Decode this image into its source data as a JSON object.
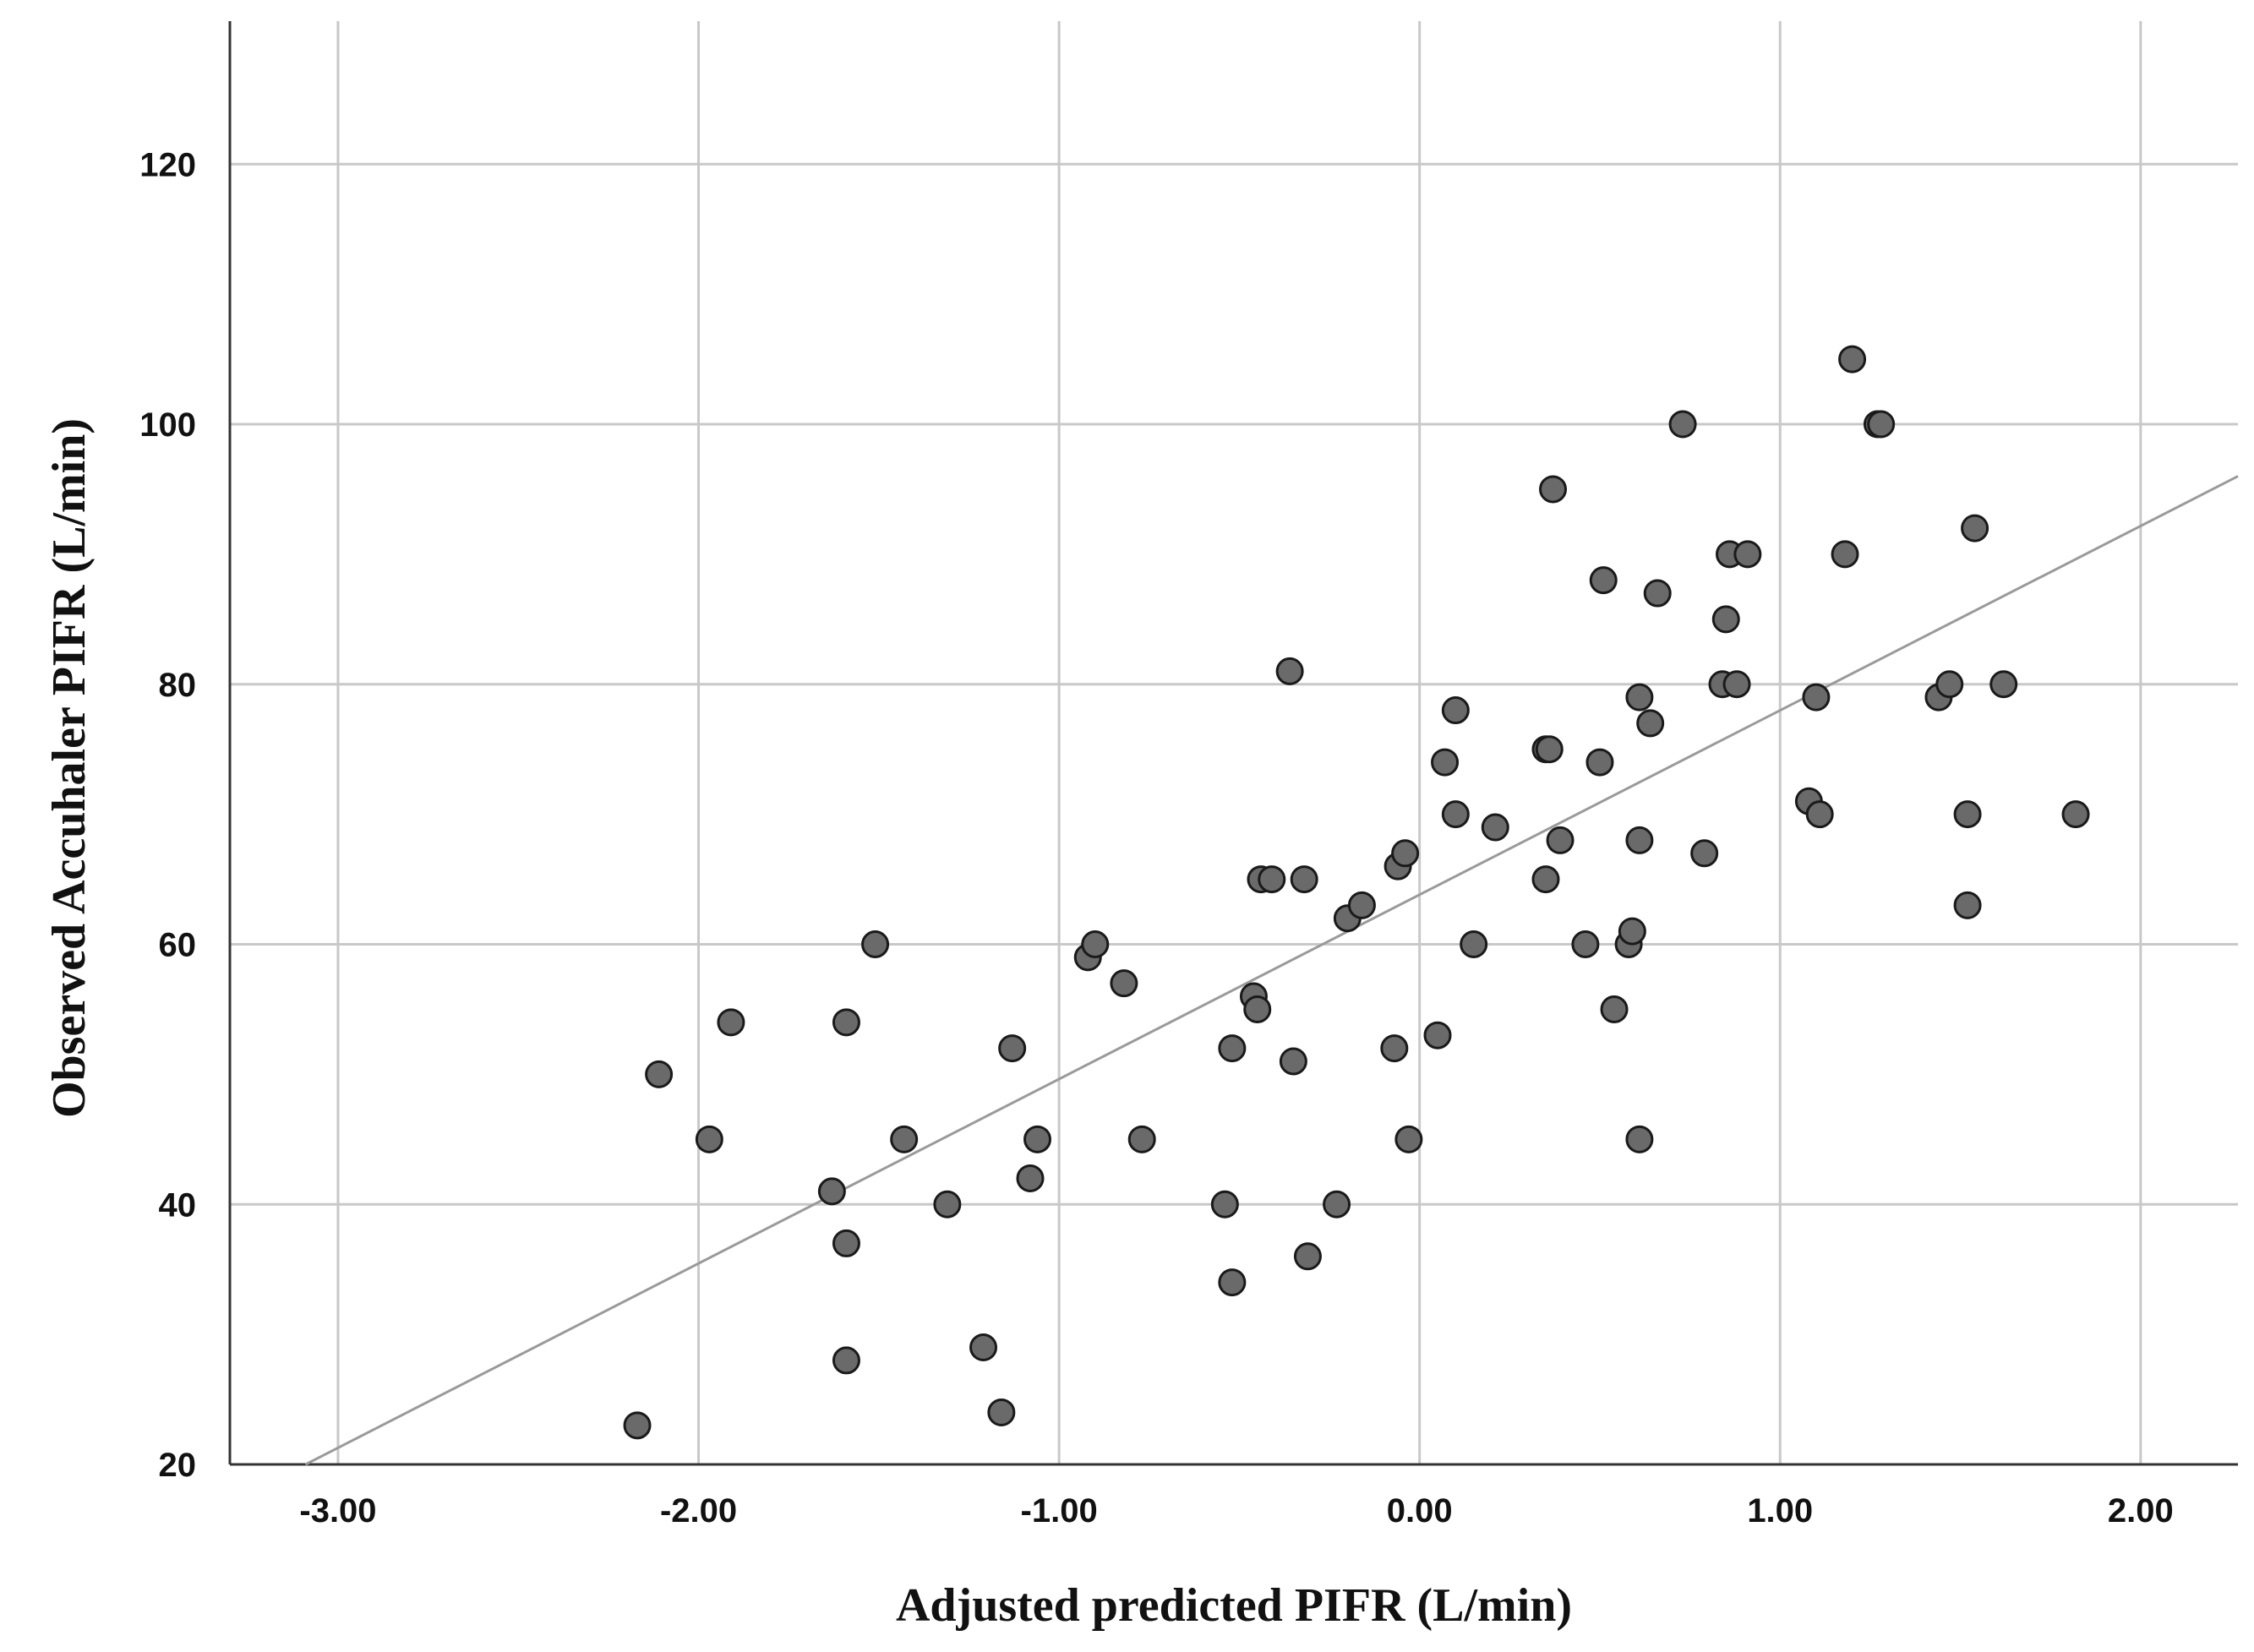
{
  "chart_data": {
    "type": "scatter",
    "title": "",
    "xlabel": "Adjusted predicted PIFR (L/min)",
    "ylabel": "Observed Accuhaler PIFR (L/min)",
    "xlim": [
      -3.3,
      2.27
    ],
    "ylim": [
      20,
      131
    ],
    "x_ticks": [
      -3,
      -2,
      -1,
      0,
      1,
      2
    ],
    "x_tick_labels": [
      "-3.00",
      "-2.00",
      "-1.00",
      "0.00",
      "1.00",
      "2.00"
    ],
    "y_ticks": [
      20,
      40,
      60,
      80,
      100,
      120
    ],
    "y_tick_labels": [
      "20",
      "40",
      "60",
      "80",
      "100",
      "120"
    ],
    "grid": true,
    "fit_line": {
      "x": [
        -3.09,
        2.27
      ],
      "y": [
        20,
        96
      ]
    },
    "points": [
      [
        -2.17,
        23
      ],
      [
        -2.11,
        50
      ],
      [
        -1.97,
        45
      ],
      [
        -1.91,
        54
      ],
      [
        -1.63,
        41
      ],
      [
        -1.59,
        54
      ],
      [
        -1.59,
        37
      ],
      [
        -1.59,
        28
      ],
      [
        -1.51,
        60
      ],
      [
        -1.43,
        45
      ],
      [
        -1.31,
        40
      ],
      [
        -1.21,
        29
      ],
      [
        -1.16,
        24
      ],
      [
        -1.13,
        52
      ],
      [
        -1.08,
        42
      ],
      [
        -1.06,
        45
      ],
      [
        -0.92,
        59
      ],
      [
        -0.9,
        60
      ],
      [
        -0.82,
        57
      ],
      [
        -0.77,
        45
      ],
      [
        -0.54,
        40
      ],
      [
        -0.52,
        52
      ],
      [
        -0.52,
        34
      ],
      [
        -0.46,
        56
      ],
      [
        -0.45,
        55
      ],
      [
        -0.44,
        65
      ],
      [
        -0.41,
        65
      ],
      [
        -0.36,
        81
      ],
      [
        -0.35,
        51
      ],
      [
        -0.32,
        65
      ],
      [
        -0.31,
        36
      ],
      [
        -0.23,
        40
      ],
      [
        -0.2,
        62
      ],
      [
        -0.16,
        63
      ],
      [
        -0.07,
        52
      ],
      [
        -0.06,
        66
      ],
      [
        -0.04,
        67
      ],
      [
        -0.03,
        45
      ],
      [
        0.05,
        53
      ],
      [
        0.07,
        74
      ],
      [
        0.1,
        70
      ],
      [
        0.1,
        78
      ],
      [
        0.15,
        60
      ],
      [
        0.21,
        69
      ],
      [
        0.35,
        75
      ],
      [
        0.36,
        75
      ],
      [
        0.35,
        65
      ],
      [
        0.37,
        95
      ],
      [
        0.39,
        68
      ],
      [
        0.46,
        60
      ],
      [
        0.5,
        74
      ],
      [
        0.51,
        88
      ],
      [
        0.54,
        55
      ],
      [
        0.58,
        60
      ],
      [
        0.59,
        61
      ],
      [
        0.61,
        68
      ],
      [
        0.61,
        79
      ],
      [
        0.61,
        45
      ],
      [
        0.64,
        77
      ],
      [
        0.66,
        87
      ],
      [
        0.73,
        100
      ],
      [
        0.79,
        67
      ],
      [
        0.84,
        80
      ],
      [
        0.85,
        85
      ],
      [
        0.86,
        90
      ],
      [
        0.88,
        80
      ],
      [
        0.91,
        90
      ],
      [
        1.08,
        71
      ],
      [
        1.1,
        79
      ],
      [
        1.11,
        70
      ],
      [
        1.18,
        90
      ],
      [
        1.2,
        105
      ],
      [
        1.27,
        100
      ],
      [
        1.28,
        100
      ],
      [
        1.44,
        79
      ],
      [
        1.47,
        80
      ],
      [
        1.52,
        70
      ],
      [
        1.52,
        63
      ],
      [
        1.54,
        92
      ],
      [
        1.62,
        80
      ],
      [
        1.82,
        70
      ]
    ]
  }
}
